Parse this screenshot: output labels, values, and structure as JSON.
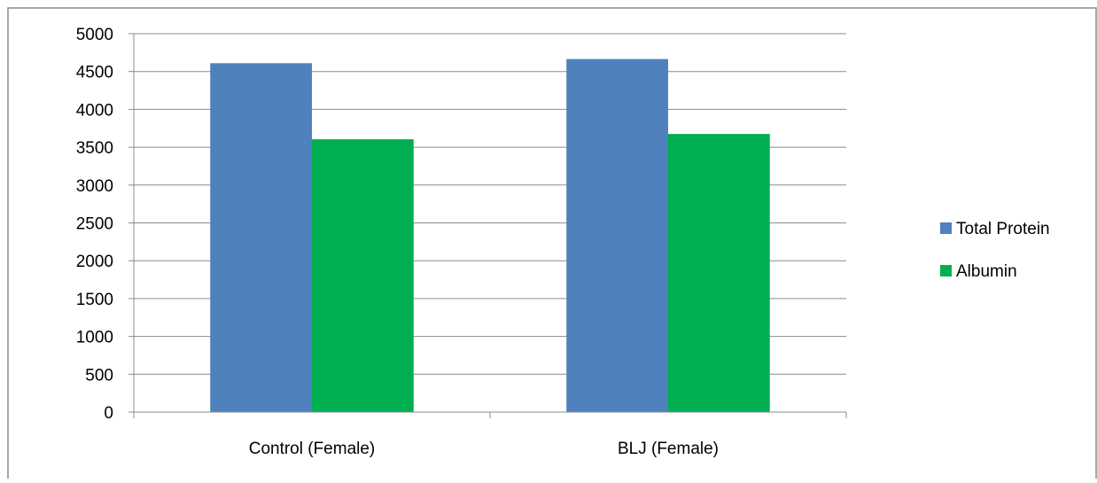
{
  "chart_data": {
    "type": "bar",
    "title": "",
    "xlabel": "",
    "ylabel": "",
    "categories": [
      "Control (Female)",
      "BLJ (Female)"
    ],
    "series": [
      {
        "name": "Total Protein",
        "values": [
          4610,
          4665
        ],
        "color": "#4f81bd"
      },
      {
        "name": "Albumin",
        "values": [
          3605,
          3675
        ],
        "color": "#00b050"
      }
    ],
    "ylim": [
      0,
      5000
    ],
    "yticks": [
      0,
      500,
      1000,
      1500,
      2000,
      2500,
      3000,
      3500,
      4000,
      4500,
      5000
    ],
    "grid": true,
    "legend_position": "right"
  }
}
